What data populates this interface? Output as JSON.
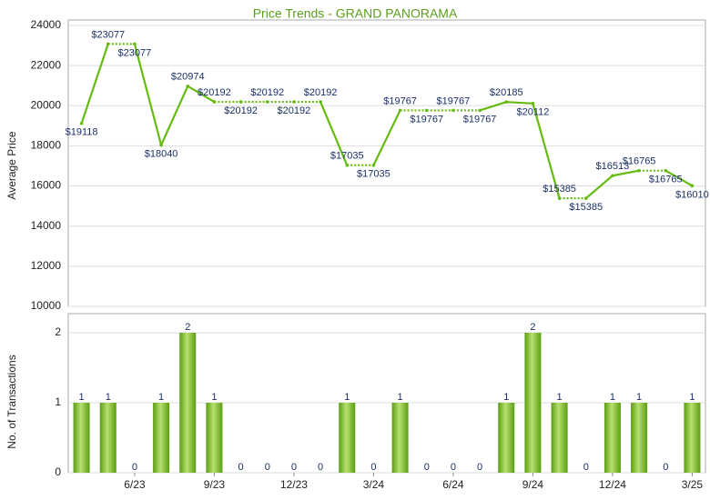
{
  "chart_data": [
    {
      "type": "line",
      "title": "Price Trends - GRAND PANORAMA",
      "ylabel": "Average Price",
      "color": "#66bb11",
      "values": [
        19118,
        23077,
        23077,
        18040,
        20974,
        20192,
        20192,
        20192,
        20192,
        20192,
        17035,
        17035,
        19767,
        19767,
        19767,
        19767,
        20185,
        20112,
        15385,
        15385,
        16513,
        16765,
        16765,
        16010
      ],
      "value_labels": [
        "$19118",
        "$23077",
        "$23077",
        "$18040",
        "$20974",
        "$20192",
        "$20192",
        "$20192",
        "$20192",
        "$20192",
        "$17035",
        "$17035",
        "$19767",
        "$19767",
        "$19767",
        "$19767",
        "$20185",
        "$20112",
        "$15385",
        "$15385",
        "$16513",
        "$16765",
        "$16765",
        "$16010"
      ],
      "ylim": [
        10000,
        24000
      ],
      "yticks": [
        10000,
        12000,
        14000,
        16000,
        18000,
        20000,
        22000,
        24000
      ],
      "grid": true
    },
    {
      "type": "bar",
      "ylabel": "No. of Transactions",
      "color": "#77c020",
      "categories": [
        null,
        null,
        "6/23",
        null,
        null,
        "9/23",
        null,
        null,
        "12/23",
        null,
        null,
        "3/24",
        null,
        null,
        "6/24",
        null,
        null,
        "9/24",
        null,
        null,
        "12/24",
        null,
        null,
        "3/25"
      ],
      "values": [
        1,
        1,
        0,
        1,
        2,
        1,
        0,
        0,
        0,
        0,
        1,
        0,
        1,
        0,
        0,
        0,
        1,
        2,
        1,
        0,
        1,
        1,
        0,
        1
      ],
      "ylim": [
        0,
        2
      ],
      "yticks": [
        0,
        1,
        2
      ],
      "grid": true
    }
  ]
}
